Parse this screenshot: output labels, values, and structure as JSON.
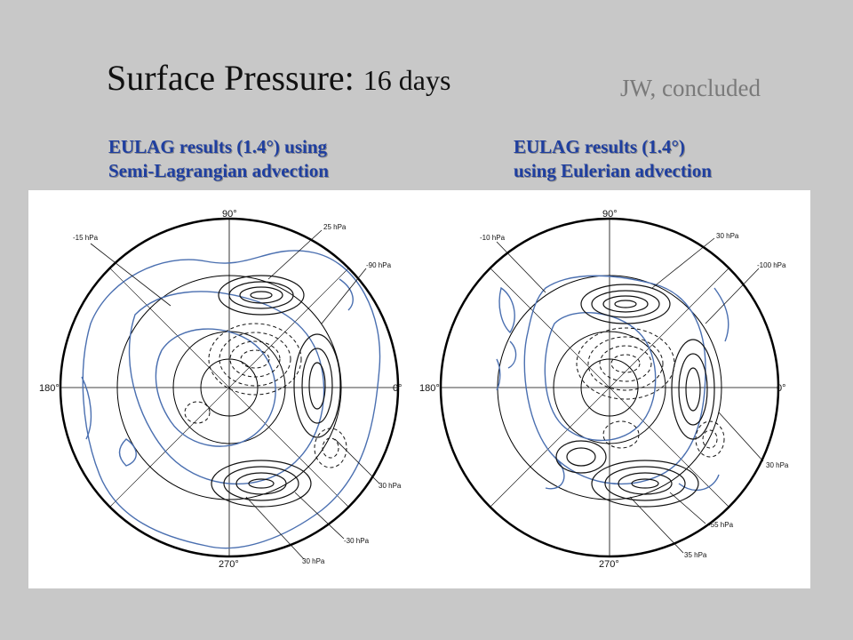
{
  "title": {
    "main": "Surface Pressure:",
    "sub": "16 days"
  },
  "tag": "JW, concluded",
  "panels": [
    {
      "caption_line1": "EULAG results (1.4°) using",
      "caption_line2": "Semi-Lagrangian advection",
      "lon_labels": {
        "top": "90°",
        "left": "180°",
        "right": "0°",
        "bottom": "270°"
      },
      "contour_labels": [
        "-15 hPa",
        "25 hPa",
        "-90 hPa",
        "30 hPa",
        "-30 hPa",
        "30 hPa"
      ]
    },
    {
      "caption_line1": "EULAG results (1.4°)",
      "caption_line2": "using Eulerian advection",
      "lon_labels": {
        "top": "90°",
        "left": "180°",
        "right": "0°",
        "bottom": "270°"
      },
      "contour_labels": [
        "-10 hPa",
        "30 hPa",
        "-100 hPa",
        "30 hPa",
        "-55 hPa",
        "35 hPa"
      ]
    }
  ],
  "colors": {
    "blue_contour": "#4a6fb0",
    "caption": "#1f3fa0",
    "background": "#c8c8c8"
  }
}
